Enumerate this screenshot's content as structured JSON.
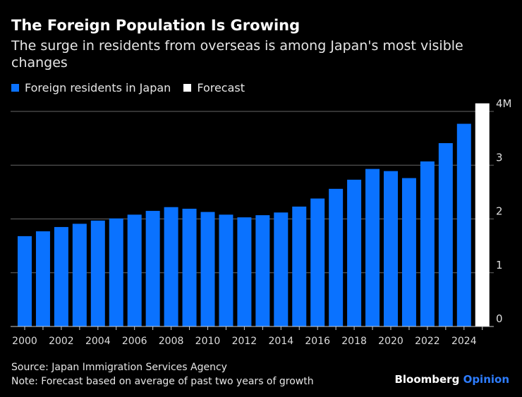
{
  "title": "The Foreign Population Is Growing",
  "subtitle": "The surge in residents from overseas is among Japan's most visible changes",
  "source": "Source: Japan Immigration Services Agency",
  "note": "Note: Forecast based on average of past two years of growth",
  "brand": {
    "name": "Bloomberg",
    "suffix": "Opinion"
  },
  "colors": {
    "series": "#0a72ff",
    "forecast": "#ffffff",
    "background": "#000000",
    "brand_accent": "#2e7dff"
  },
  "chart_data": {
    "type": "bar",
    "legend_placement": "top-left",
    "grid": true,
    "ylim": [
      0,
      4
    ],
    "y_ticks": [
      {
        "value": 0,
        "label": "0"
      },
      {
        "value": 1,
        "label": "1"
      },
      {
        "value": 2,
        "label": "2"
      },
      {
        "value": 3,
        "label": "3"
      },
      {
        "value": 4,
        "label": "4M"
      }
    ],
    "x_tick_labels": [
      "2000",
      "2002",
      "2004",
      "2006",
      "2008",
      "2010",
      "2012",
      "2014",
      "2016",
      "2018",
      "2020",
      "2022",
      "2024"
    ],
    "categories": [
      2000,
      2001,
      2002,
      2003,
      2004,
      2005,
      2006,
      2007,
      2008,
      2009,
      2010,
      2011,
      2012,
      2013,
      2014,
      2015,
      2016,
      2017,
      2018,
      2019,
      2020,
      2021,
      2022,
      2023,
      2024,
      2025
    ],
    "series": [
      {
        "name": "Foreign residents in Japan",
        "color": "#0a72ff",
        "values": [
          1.68,
          1.77,
          1.85,
          1.91,
          1.97,
          2.01,
          2.08,
          2.15,
          2.22,
          2.19,
          2.13,
          2.08,
          2.03,
          2.07,
          2.12,
          2.23,
          2.38,
          2.56,
          2.73,
          2.93,
          2.89,
          2.76,
          3.07,
          3.41,
          3.77,
          null
        ]
      },
      {
        "name": "Forecast",
        "color": "#ffffff",
        "values": [
          null,
          null,
          null,
          null,
          null,
          null,
          null,
          null,
          null,
          null,
          null,
          null,
          null,
          null,
          null,
          null,
          null,
          null,
          null,
          null,
          null,
          null,
          null,
          null,
          null,
          4.15
        ]
      }
    ]
  }
}
